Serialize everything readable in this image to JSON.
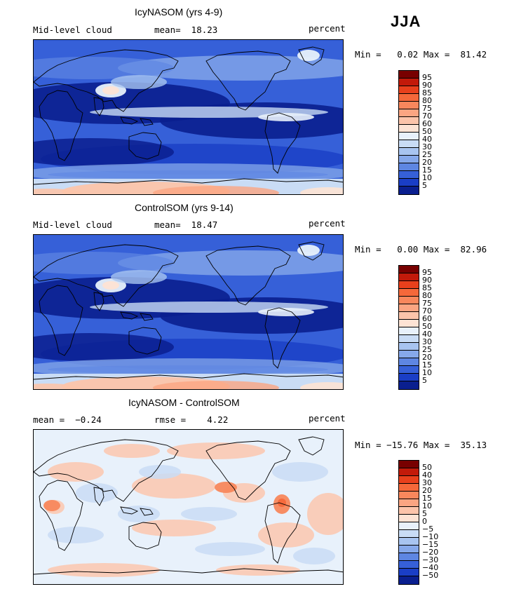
{
  "season": "JJA",
  "panels": [
    {
      "title": "IcyNASOM (yrs 4-9)",
      "variable": "Mid-level cloud",
      "stat1": "mean=  18.23",
      "stat2": "",
      "units": "percent",
      "minmax": "Min =   0.02 Max =  81.42",
      "colorbar_levels": [
        "95",
        "90",
        "85",
        "80",
        "75",
        "70",
        "60",
        "50",
        "40",
        "30",
        "25",
        "20",
        "15",
        "10",
        "5"
      ],
      "colorbar_colors": [
        "#780000",
        "#c21a0a",
        "#e8401c",
        "#f5683a",
        "#f8875c",
        "#fba582",
        "#fcc4aa",
        "#fde3d4",
        "#e8f1fb",
        "#c9dcf5",
        "#a8c4f0",
        "#86a8ea",
        "#5e86e2",
        "#3660d8",
        "#1a3ec6",
        "#0a1f8f"
      ]
    },
    {
      "title": "ControlSOM (yrs 9-14)",
      "variable": "Mid-level cloud",
      "stat1": "mean=  18.47",
      "stat2": "",
      "units": "percent",
      "minmax": "Min =   0.00 Max =  82.96",
      "colorbar_levels": [
        "95",
        "90",
        "85",
        "80",
        "75",
        "70",
        "60",
        "50",
        "40",
        "30",
        "25",
        "20",
        "15",
        "10",
        "5"
      ],
      "colorbar_colors": [
        "#780000",
        "#c21a0a",
        "#e8401c",
        "#f5683a",
        "#f8875c",
        "#fba582",
        "#fcc4aa",
        "#fde3d4",
        "#e8f1fb",
        "#c9dcf5",
        "#a8c4f0",
        "#86a8ea",
        "#5e86e2",
        "#3660d8",
        "#1a3ec6",
        "#0a1f8f"
      ]
    },
    {
      "title": "IcyNASOM - ControlSOM",
      "variable": "",
      "stat1": "mean =  −0.24",
      "stat2": "rmse =    4.22",
      "units": "percent",
      "minmax": "Min = −15.76 Max =  35.13",
      "colorbar_levels": [
        "50",
        "40",
        "30",
        "20",
        "15",
        "10",
        "5",
        "0",
        "−5",
        "−10",
        "−15",
        "−20",
        "−30",
        "−40",
        "−50"
      ],
      "colorbar_colors": [
        "#780000",
        "#c21a0a",
        "#e8401c",
        "#f5683a",
        "#f8875c",
        "#fba582",
        "#fcc4aa",
        "#fde3d4",
        "#e8f1fb",
        "#c9dcf5",
        "#a8c4f0",
        "#86a8ea",
        "#5e86e2",
        "#3660d8",
        "#1a3ec6",
        "#0a1f8f"
      ]
    }
  ],
  "chart_data": [
    {
      "type": "heatmap",
      "title": "IcyNASOM (yrs 4-9)",
      "variable": "Mid-level cloud",
      "units": "percent",
      "season": "JJA",
      "mean": 18.23,
      "min": 0.02,
      "max": 81.42,
      "contour_levels": [
        5,
        10,
        15,
        20,
        25,
        30,
        40,
        50,
        60,
        70,
        75,
        80,
        85,
        90,
        95
      ],
      "description": "global lat-lon map of mid-level cloud fraction"
    },
    {
      "type": "heatmap",
      "title": "ControlSOM (yrs 9-14)",
      "variable": "Mid-level cloud",
      "units": "percent",
      "season": "JJA",
      "mean": 18.47,
      "min": 0.0,
      "max": 82.96,
      "contour_levels": [
        5,
        10,
        15,
        20,
        25,
        30,
        40,
        50,
        60,
        70,
        75,
        80,
        85,
        90,
        95
      ]
    },
    {
      "type": "heatmap",
      "title": "IcyNASOM - ControlSOM",
      "units": "percent",
      "season": "JJA",
      "mean": -0.24,
      "rmse": 4.22,
      "min": -15.76,
      "max": 35.13,
      "contour_levels": [
        -50,
        -40,
        -30,
        -20,
        -15,
        -10,
        -5,
        0,
        5,
        10,
        15,
        20,
        30,
        40,
        50
      ]
    }
  ]
}
